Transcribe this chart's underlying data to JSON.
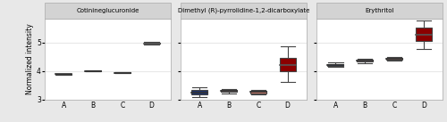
{
  "panels": [
    {
      "title": "Cotinineglucuronide",
      "groups": [
        "A",
        "B",
        "C",
        "D"
      ],
      "colors": [
        "#2b2b2b",
        "#2b2b2b",
        "#2b2b2b",
        "#8b0000"
      ],
      "boxes": [
        {
          "q1": 3.875,
          "median": 3.883,
          "q3": 3.89,
          "whislo": 3.86,
          "whishi": 3.9
        },
        {
          "q1": 3.993,
          "median": 4.0,
          "q3": 4.007,
          "whislo": 3.98,
          "whishi": 4.015
        },
        {
          "q1": 3.93,
          "median": 3.94,
          "q3": 3.95,
          "whislo": 3.915,
          "whishi": 3.963
        },
        {
          "q1": 4.945,
          "median": 4.97,
          "q3": 4.99,
          "whislo": 4.92,
          "whishi": 5.02
        }
      ]
    },
    {
      "title": "Dimethyl (R)-pyrrolidine-1,2-dicarboxylate",
      "groups": [
        "A",
        "B",
        "C",
        "D"
      ],
      "colors": [
        "#1a2f6b",
        "#c8a8b0",
        "#c87868",
        "#8b0000"
      ],
      "boxes": [
        {
          "q1": 3.17,
          "median": 3.23,
          "q3": 3.33,
          "whislo": 3.1,
          "whishi": 3.42
        },
        {
          "q1": 3.27,
          "median": 3.3,
          "q3": 3.33,
          "whislo": 3.22,
          "whishi": 3.37
        },
        {
          "q1": 3.22,
          "median": 3.26,
          "q3": 3.29,
          "whislo": 3.18,
          "whishi": 3.32
        },
        {
          "q1": 3.98,
          "median": 4.22,
          "q3": 4.45,
          "whislo": 3.62,
          "whishi": 4.88
        }
      ]
    },
    {
      "title": "Erythritol",
      "groups": [
        "A",
        "B",
        "C",
        "D"
      ],
      "colors": [
        "#1a2f6b",
        "#c8a8b0",
        "#c87868",
        "#8b0000"
      ],
      "boxes": [
        {
          "q1": 4.19,
          "median": 4.22,
          "q3": 4.25,
          "whislo": 4.14,
          "whishi": 4.29
        },
        {
          "q1": 4.33,
          "median": 4.36,
          "q3": 4.39,
          "whislo": 4.28,
          "whishi": 4.43
        },
        {
          "q1": 4.4,
          "median": 4.43,
          "q3": 4.46,
          "whislo": 4.36,
          "whishi": 4.5
        },
        {
          "q1": 5.05,
          "median": 5.28,
          "q3": 5.52,
          "whislo": 4.78,
          "whishi": 5.76
        }
      ]
    }
  ],
  "ylim": [
    2.98,
    5.85
  ],
  "yticks": [
    3,
    4,
    5
  ],
  "ylabel": "Normalized intensity",
  "fig_background": "#e8e8e8",
  "panel_background": "#ffffff",
  "strip_background": "#d3d3d3",
  "grid_color": "#e8e8e8",
  "box_width": 0.55,
  "linewidth": 0.8,
  "title_fontsize": 5.0,
  "axis_fontsize": 5.5,
  "tick_fontsize": 5.5
}
